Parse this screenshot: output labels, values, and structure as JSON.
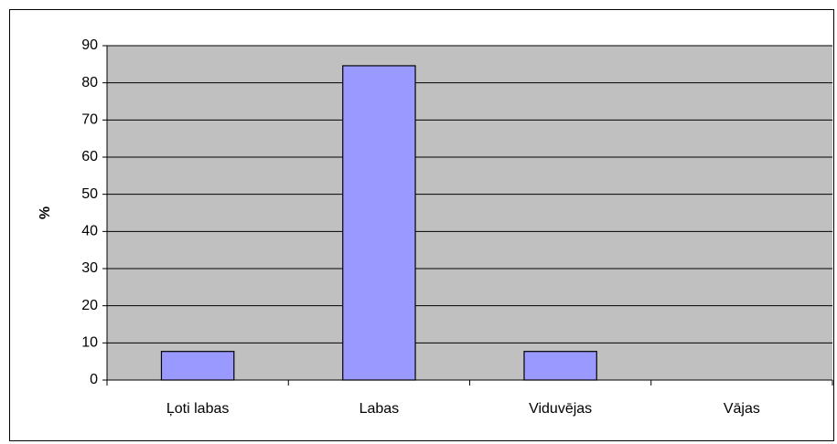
{
  "chart_data": {
    "type": "bar",
    "y_label": "%",
    "categories": [
      "Ļoti labas",
      "Labas",
      "Viduvējas",
      "Vājas"
    ],
    "values": [
      7.7,
      84.6,
      7.7,
      0
    ],
    "color": "#9999ff",
    "ylim": [
      0,
      90
    ],
    "yticks": [
      0,
      10,
      20,
      30,
      40,
      50,
      60,
      70,
      80,
      90
    ],
    "grid": true
  }
}
